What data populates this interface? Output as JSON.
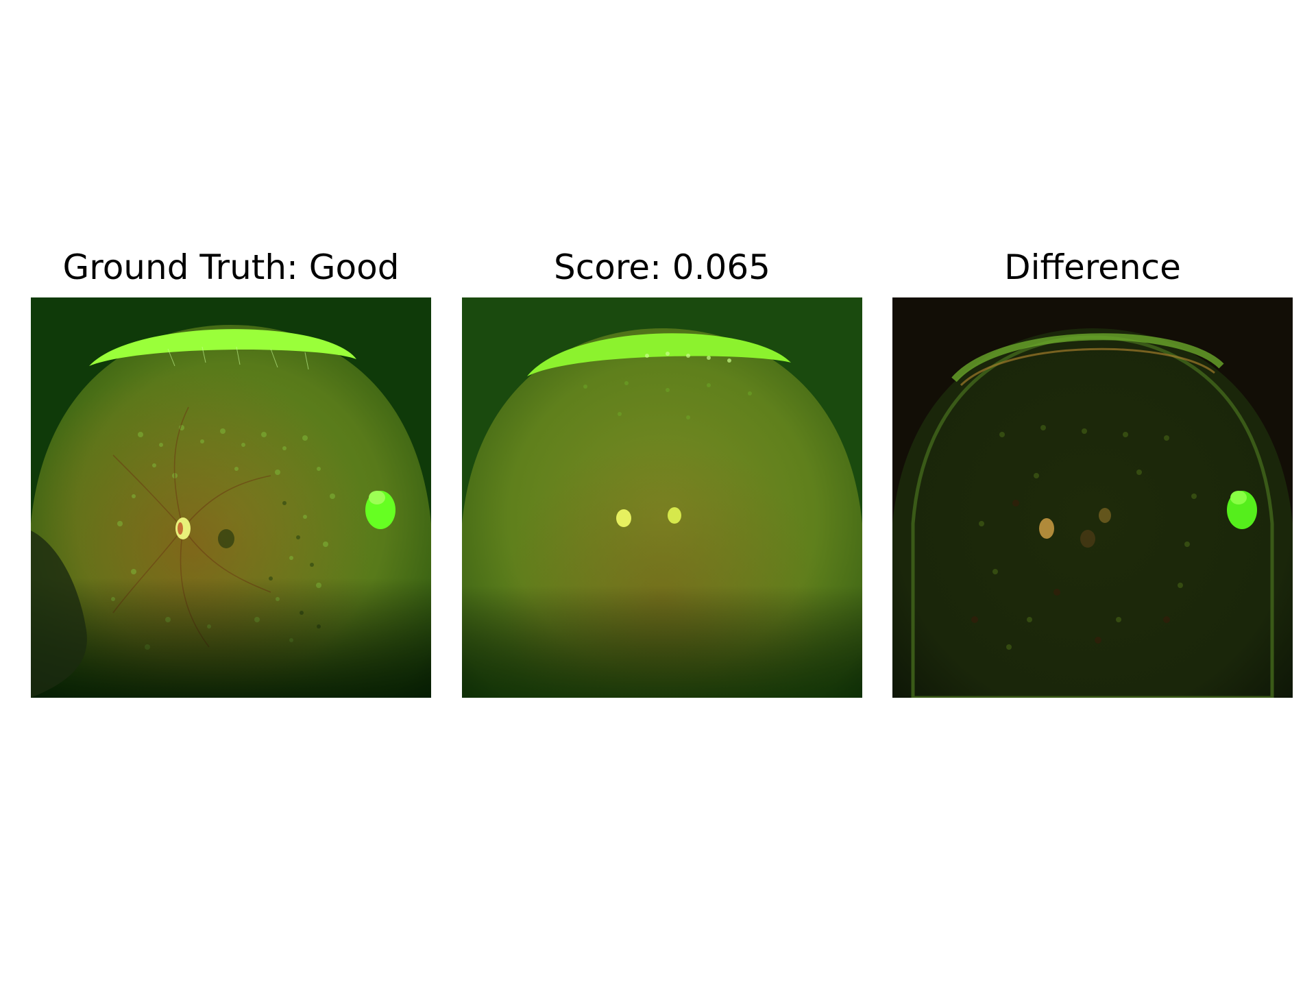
{
  "panels": [
    {
      "title": "Ground Truth: Good"
    },
    {
      "title": "Score: 0.065"
    },
    {
      "title": "Difference"
    }
  ],
  "colors": {
    "background": "#ffffff",
    "retina_green": "#5f8a1c",
    "dark_frame": "#0b2a06",
    "bright_green": "#7dff2a"
  }
}
